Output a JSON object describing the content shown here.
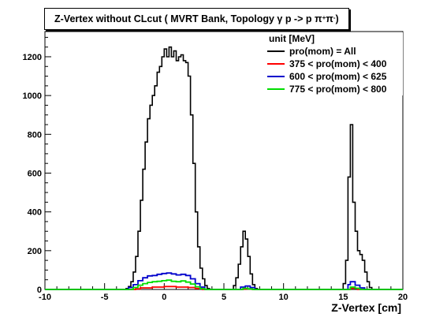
{
  "chart_data": {
    "type": "line",
    "title": {
      "main": "Z-Vertex without CLcut ( MVRT Bank, Topology γ p -> p π",
      "sup1": "+",
      "mid": " π",
      "sup2": "-",
      "end": " )"
    },
    "xlabel": "Z-Vertex [cm]",
    "ylabel": "",
    "xlim": [
      -10,
      20
    ],
    "ylim": [
      0,
      1330
    ],
    "x_ticks": [
      -10,
      -5,
      0,
      5,
      10,
      15,
      20
    ],
    "y_ticks": [
      0,
      200,
      400,
      600,
      800,
      1000,
      1200
    ],
    "legend": {
      "header": "unit [MeV]",
      "placement": "top-right"
    },
    "series": [
      {
        "name": "pro(mom) = All",
        "color": "#000000",
        "points": [
          [
            -10,
            0
          ],
          [
            -3.4,
            0
          ],
          [
            -3.2,
            5
          ],
          [
            -3.0,
            15
          ],
          [
            -2.8,
            40
          ],
          [
            -2.6,
            90
          ],
          [
            -2.4,
            170
          ],
          [
            -2.2,
            300
          ],
          [
            -2.0,
            460
          ],
          [
            -1.8,
            620
          ],
          [
            -1.6,
            760
          ],
          [
            -1.4,
            880
          ],
          [
            -1.2,
            950
          ],
          [
            -1.0,
            1000
          ],
          [
            -0.8,
            1050
          ],
          [
            -0.6,
            1120
          ],
          [
            -0.4,
            1150
          ],
          [
            -0.2,
            1200
          ],
          [
            0.0,
            1240
          ],
          [
            0.2,
            1200
          ],
          [
            0.4,
            1250
          ],
          [
            0.6,
            1200
          ],
          [
            0.8,
            1230
          ],
          [
            1.0,
            1180
          ],
          [
            1.2,
            1200
          ],
          [
            1.4,
            1210
          ],
          [
            1.6,
            1180
          ],
          [
            1.8,
            1170
          ],
          [
            2.0,
            1100
          ],
          [
            2.2,
            900
          ],
          [
            2.4,
            650
          ],
          [
            2.6,
            400
          ],
          [
            2.8,
            220
          ],
          [
            3.0,
            110
          ],
          [
            3.2,
            55
          ],
          [
            3.4,
            20
          ],
          [
            3.6,
            5
          ],
          [
            3.8,
            0
          ],
          [
            5.6,
            0
          ],
          [
            5.8,
            20
          ],
          [
            6.0,
            60
          ],
          [
            6.2,
            130
          ],
          [
            6.4,
            220
          ],
          [
            6.6,
            300
          ],
          [
            6.8,
            260
          ],
          [
            7.0,
            170
          ],
          [
            7.2,
            80
          ],
          [
            7.4,
            25
          ],
          [
            7.6,
            5
          ],
          [
            7.8,
            0
          ],
          [
            14.8,
            0
          ],
          [
            15.0,
            30
          ],
          [
            15.2,
            150
          ],
          [
            15.4,
            580
          ],
          [
            15.6,
            850
          ],
          [
            15.8,
            450
          ],
          [
            16.0,
            300
          ],
          [
            16.2,
            200
          ],
          [
            16.4,
            180
          ],
          [
            16.6,
            150
          ],
          [
            16.8,
            90
          ],
          [
            17.0,
            40
          ],
          [
            17.2,
            10
          ],
          [
            17.4,
            0
          ],
          [
            20,
            0
          ]
        ]
      },
      {
        "name": "375 < pro(mom) < 400",
        "color": "#ff0000",
        "points": [
          [
            -10,
            0
          ],
          [
            -3,
            0
          ],
          [
            -2.4,
            3
          ],
          [
            -2,
            8
          ],
          [
            -1,
            12
          ],
          [
            0,
            15
          ],
          [
            1,
            12
          ],
          [
            2,
            10
          ],
          [
            2.6,
            5
          ],
          [
            3.2,
            0
          ],
          [
            5.8,
            0
          ],
          [
            6.6,
            3
          ],
          [
            7.4,
            0
          ],
          [
            15.0,
            0
          ],
          [
            15.6,
            6
          ],
          [
            16.2,
            0
          ],
          [
            20,
            0
          ]
        ]
      },
      {
        "name": "600 < pro(mom) < 625",
        "color": "#0000cc",
        "points": [
          [
            -10,
            0
          ],
          [
            -3.2,
            0
          ],
          [
            -3.0,
            10
          ],
          [
            -2.6,
            25
          ],
          [
            -2.2,
            45
          ],
          [
            -1.8,
            60
          ],
          [
            -1.4,
            70
          ],
          [
            -1.0,
            72
          ],
          [
            -0.6,
            78
          ],
          [
            -0.2,
            82
          ],
          [
            0.2,
            85
          ],
          [
            0.6,
            80
          ],
          [
            1.0,
            75
          ],
          [
            1.4,
            78
          ],
          [
            1.8,
            72
          ],
          [
            2.2,
            55
          ],
          [
            2.6,
            30
          ],
          [
            3.0,
            12
          ],
          [
            3.4,
            0
          ],
          [
            6.0,
            0
          ],
          [
            6.4,
            12
          ],
          [
            6.8,
            18
          ],
          [
            7.2,
            10
          ],
          [
            7.6,
            0
          ],
          [
            15.0,
            0
          ],
          [
            15.4,
            25
          ],
          [
            15.6,
            40
          ],
          [
            16.0,
            22
          ],
          [
            16.4,
            8
          ],
          [
            16.8,
            0
          ],
          [
            20,
            0
          ]
        ]
      },
      {
        "name": "775 < pro(mom) < 800",
        "color": "#00dd00",
        "points": [
          [
            -10,
            0
          ],
          [
            -3.0,
            0
          ],
          [
            -2.6,
            10
          ],
          [
            -2.2,
            22
          ],
          [
            -1.8,
            30
          ],
          [
            -1.4,
            36
          ],
          [
            -1.0,
            40
          ],
          [
            -0.6,
            42
          ],
          [
            -0.2,
            45
          ],
          [
            0.2,
            48
          ],
          [
            0.6,
            42
          ],
          [
            1.0,
            40
          ],
          [
            1.4,
            44
          ],
          [
            1.8,
            38
          ],
          [
            2.2,
            28
          ],
          [
            2.6,
            14
          ],
          [
            3.0,
            4
          ],
          [
            3.4,
            0
          ],
          [
            6.2,
            0
          ],
          [
            6.6,
            6
          ],
          [
            7.0,
            3
          ],
          [
            7.4,
            0
          ],
          [
            15.2,
            0
          ],
          [
            15.6,
            12
          ],
          [
            16.0,
            6
          ],
          [
            16.4,
            0
          ],
          [
            20,
            0
          ]
        ]
      }
    ]
  }
}
